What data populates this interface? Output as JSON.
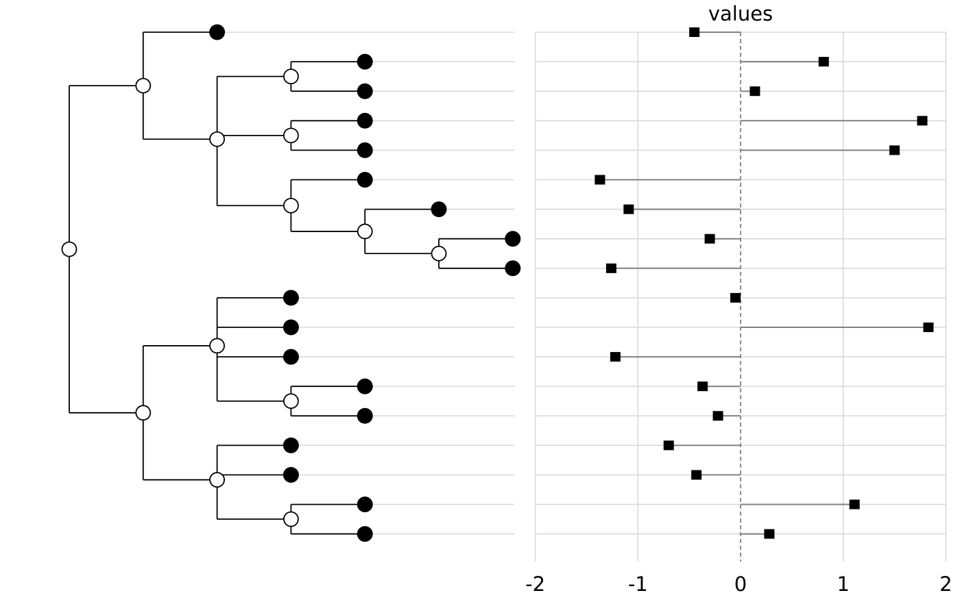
{
  "colors": {
    "background": "#ffffff",
    "tree_line": "#000000",
    "tip_fill": "#000000",
    "internal_fill": "#ffffff",
    "guide_line": "#d9d9d9",
    "grid_line": "#d9d9d9",
    "zero_line": "#808080",
    "stem": "#808080",
    "marker": "#000000"
  },
  "chart_data": [
    {
      "type": "tree",
      "tip_count": 18,
      "leaf_depths": [
        2,
        4,
        4,
        4,
        4,
        4,
        5,
        6,
        6,
        3,
        3,
        3,
        4,
        4,
        3,
        3,
        4,
        4
      ],
      "internal_nodes": [
        {
          "depth": 0,
          "children": [
            {
              "internal": 1
            },
            {
              "internal": 9
            }
          ]
        },
        {
          "depth": 1,
          "children": [
            {
              "leaf": 0
            },
            {
              "internal": 2
            }
          ]
        },
        {
          "depth": 2,
          "children": [
            {
              "internal": 3
            },
            {
              "internal": 4
            },
            {
              "internal": 5
            }
          ]
        },
        {
          "depth": 3,
          "children": [
            {
              "leaf": 1
            },
            {
              "leaf": 2
            }
          ]
        },
        {
          "depth": 3,
          "children": [
            {
              "leaf": 3
            },
            {
              "leaf": 4
            }
          ]
        },
        {
          "depth": 3,
          "children": [
            {
              "leaf": 5
            },
            {
              "internal": 6
            }
          ]
        },
        {
          "depth": 4,
          "children": [
            {
              "leaf": 6
            },
            {
              "internal": 7
            }
          ]
        },
        {
          "depth": 5,
          "children": [
            {
              "leaf": 7
            },
            {
              "leaf": 8
            }
          ]
        },
        {
          "depth": 4,
          "children": []
        },
        {
          "depth": 1,
          "children": [
            {
              "internal": 10
            },
            {
              "internal": 12
            }
          ]
        },
        {
          "depth": 2,
          "children": [
            {
              "leaf": 9
            },
            {
              "leaf": 10
            },
            {
              "leaf": 11
            },
            {
              "internal": 11
            }
          ]
        },
        {
          "depth": 3,
          "children": [
            {
              "leaf": 12
            },
            {
              "leaf": 13
            }
          ]
        },
        {
          "depth": 2,
          "children": [
            {
              "leaf": 14
            },
            {
              "leaf": 15
            },
            {
              "internal": 13
            }
          ]
        },
        {
          "depth": 3,
          "children": [
            {
              "leaf": 16
            },
            {
              "leaf": 17
            }
          ]
        }
      ]
    },
    {
      "type": "lollipop",
      "title": "values",
      "x_ticks": [
        "-2",
        "-1",
        "0",
        "1",
        "2"
      ],
      "x_tick_values": [
        -2,
        -1,
        0,
        1,
        2
      ],
      "xlim": [
        -2,
        2
      ],
      "grid": true,
      "baseline": 0,
      "values": [
        -0.45,
        0.81,
        0.14,
        1.77,
        1.5,
        -1.37,
        -1.09,
        -0.3,
        -1.26,
        -0.05,
        1.83,
        -1.22,
        -0.37,
        -0.22,
        -0.7,
        -0.43,
        1.11,
        0.28
      ]
    }
  ]
}
